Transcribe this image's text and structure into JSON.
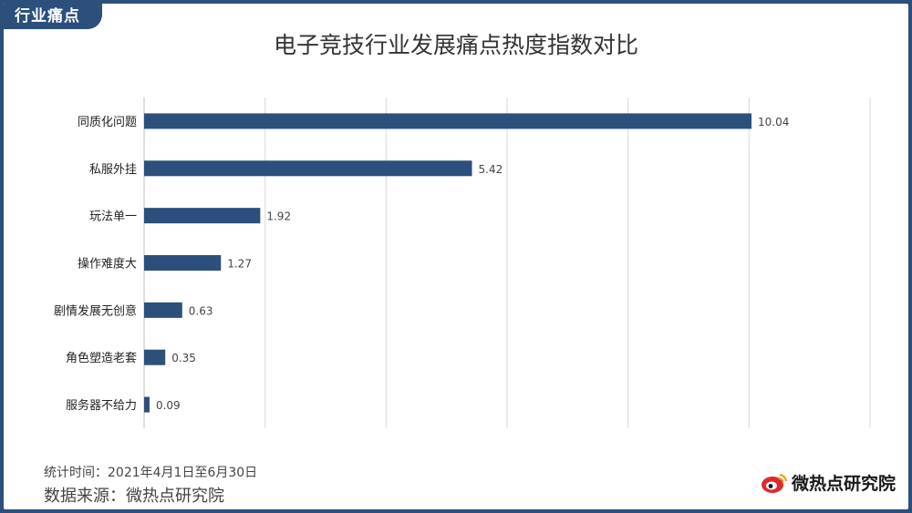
{
  "header": {
    "tag": "行业痛点",
    "title": "电子竞技行业发展痛点热度指数对比"
  },
  "chart_data": {
    "type": "bar",
    "orientation": "horizontal",
    "categories": [
      "同质化问题",
      "私服外挂",
      "玩法单一",
      "操作难度大",
      "剧情发展无创意",
      "角色塑造老套",
      "服务器不给力"
    ],
    "values": [
      10.04,
      5.42,
      1.92,
      1.27,
      0.63,
      0.35,
      0.09
    ],
    "value_labels": [
      "10.04",
      "5.42",
      "1.92",
      "1.27",
      "0.63",
      "0.35",
      "0.09"
    ],
    "title": "电子竞技行业发展痛点热度指数对比",
    "xlim": [
      0,
      12
    ],
    "grid": true,
    "bar_color": "#2c4f7c"
  },
  "footer": {
    "period": "统计时间：2021年4月1日至6月30日",
    "source": "数据来源：微热点研究院",
    "brand": "微热点研究院"
  },
  "colors": {
    "accent": "#2c4f7c",
    "brand_red": "#e02a2a"
  }
}
